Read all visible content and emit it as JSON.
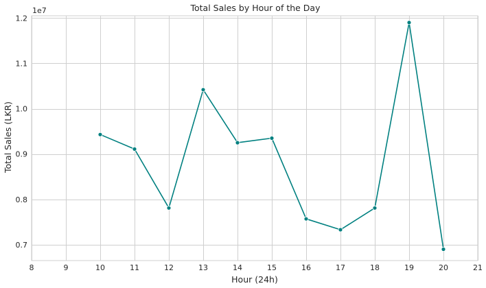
{
  "chart_data": {
    "type": "line",
    "title": "Total Sales by Hour of the Day",
    "xlabel": "Hour (24h)",
    "ylabel": "Total Sales (LKR)",
    "y_scale_label": "1e7",
    "xlim": [
      8,
      21
    ],
    "ylim": [
      0.665,
      1.205
    ],
    "x_ticks": [
      8,
      9,
      10,
      11,
      12,
      13,
      14,
      15,
      16,
      17,
      18,
      19,
      20,
      21
    ],
    "x_tick_labels": [
      "8",
      "9",
      "10",
      "11",
      "12",
      "13",
      "14",
      "15",
      "16",
      "17",
      "18",
      "19",
      "20",
      "21"
    ],
    "y_ticks": [
      0.7,
      0.8,
      0.9,
      1.0,
      1.1,
      1.2
    ],
    "y_tick_labels": [
      "0.7",
      "0.8",
      "0.9",
      "1.0",
      "1.1",
      "1.2"
    ],
    "grid": true,
    "line_color": "#008080",
    "series": [
      {
        "x": [
          10,
          11,
          12,
          13,
          14,
          15,
          16,
          17,
          18,
          19,
          20
        ],
        "y": [
          0.943,
          0.911,
          0.781,
          1.042,
          0.925,
          0.935,
          0.757,
          0.733,
          0.781,
          1.19,
          0.69
        ]
      }
    ]
  }
}
